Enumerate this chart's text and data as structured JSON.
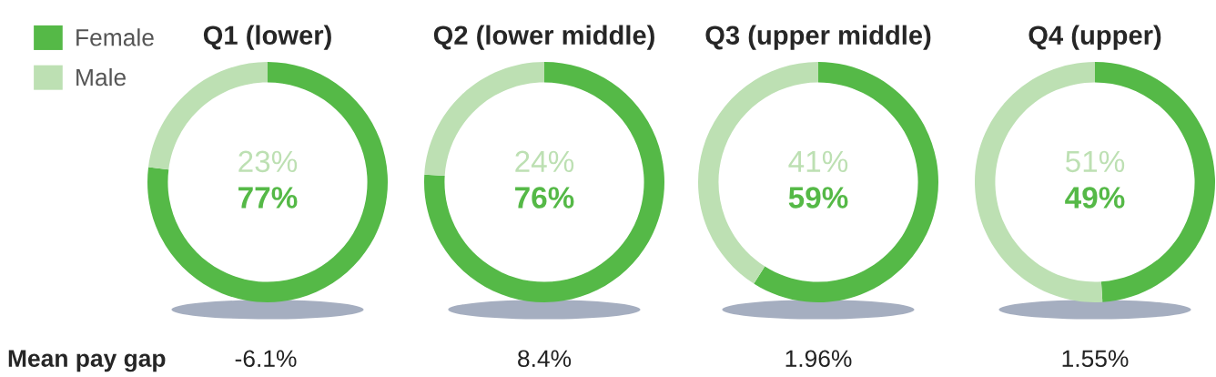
{
  "chart_data": [
    {
      "type": "donut",
      "title": "Q1 (lower)",
      "categories": [
        "Female",
        "Male"
      ],
      "values": [
        77,
        23
      ],
      "colors": [
        "#55b947",
        "#bde0b3"
      ],
      "value_labels": [
        "77%",
        "23%"
      ],
      "legend": "top left",
      "annotations": [
        "Mean pay gap",
        "-6.1%"
      ]
    },
    {
      "type": "donut",
      "title": "Q2 (lower middle)",
      "categories": [
        null,
        null
      ],
      "values": [
        76,
        24
      ],
      "colors": [
        "#55b947",
        "#bde0b3"
      ],
      "value_labels": [
        "76%",
        "24%"
      ],
      "annotations": [
        "8.4%"
      ]
    },
    {
      "type": "donut",
      "title": "Q3 (upper middle)",
      "categories": [
        null,
        null
      ],
      "values": [
        59,
        41
      ],
      "colors": [
        "#55b947",
        "#bde0b3"
      ],
      "value_labels": [
        "59%",
        "41%"
      ],
      "annotations": [
        "1.96%"
      ]
    },
    {
      "type": "donut",
      "title": "Q4 (upper)",
      "categories": [
        null,
        null
      ],
      "values": [
        49,
        51
      ],
      "colors": [
        "#55b947",
        "#bde0b3"
      ],
      "value_labels": [
        "49%",
        "51%"
      ],
      "annotations": [
        "1.55%"
      ]
    }
  ]
}
